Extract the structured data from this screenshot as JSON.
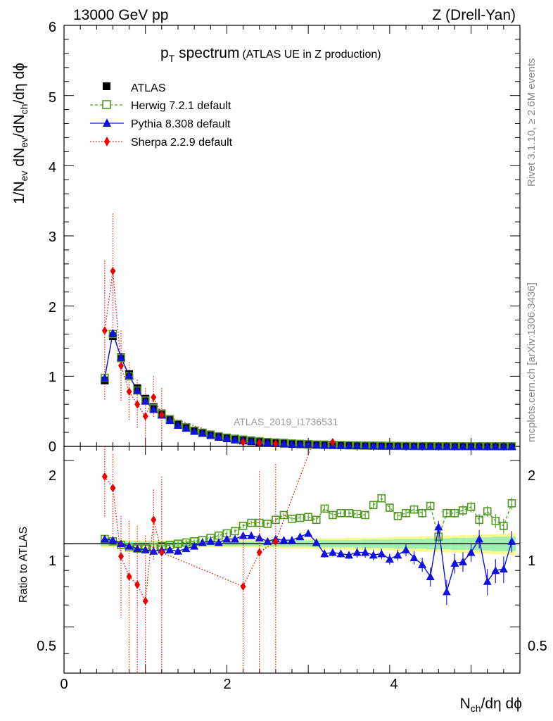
{
  "header": {
    "left": "13000 GeV pp",
    "right": "Z (Drell-Yan)"
  },
  "side_labels": {
    "rivet": "Rivet 3.1.10, ≥ 2.6M events",
    "mcplots": "mcplots.cern.ch [arXiv:1306.3436]"
  },
  "chart_data": {
    "type": "scatter",
    "title": "p",
    "title_sub": "T",
    "title_main": " spectrum",
    "title_note": "(ATLAS UE in Z production)",
    "analysis_label": "ATLAS_2019_I1736531",
    "xlabel": "N",
    "xlabel_sub": "ch",
    "xlabel_rest": "/dη dϕ",
    "ylabel": "1/N",
    "ylabel_sub1": "ev",
    "ylabel_mid": " dN",
    "ylabel_sub2": "ev",
    "ylabel_mid2": "/dN",
    "ylabel_sub3": "ch",
    "ylabel_rest": "/dη dϕ",
    "ratio_ylabel": "Ratio to ATLAS",
    "xlim": [
      0,
      5.6
    ],
    "ylim": [
      0,
      6
    ],
    "ratio_ylim": [
      0.34,
      2.25
    ],
    "xticks": [
      "0",
      "2",
      "4"
    ],
    "yticks": [
      "0",
      "1",
      "2",
      "3",
      "4",
      "5",
      "6"
    ],
    "ratio_yticks": [
      "0.5",
      "1",
      "2"
    ],
    "legend_position": "top-left",
    "x": [
      0.5,
      0.6,
      0.7,
      0.8,
      0.9,
      1.0,
      1.1,
      1.2,
      1.3,
      1.4,
      1.5,
      1.6,
      1.7,
      1.8,
      1.9,
      2.0,
      2.1,
      2.2,
      2.3,
      2.4,
      2.5,
      2.6,
      2.7,
      2.8,
      2.9,
      3.0,
      3.1,
      3.2,
      3.3,
      3.4,
      3.5,
      3.6,
      3.7,
      3.8,
      3.9,
      4.0,
      4.1,
      4.2,
      4.3,
      4.4,
      4.5,
      4.6,
      4.7,
      4.8,
      4.9,
      5.0,
      5.1,
      5.2,
      5.3,
      5.4,
      5.5
    ],
    "series": [
      {
        "name": "ATLAS",
        "color": "#000000",
        "values": [
          0.94,
          1.57,
          1.27,
          1.03,
          0.83,
          0.68,
          0.56,
          0.47,
          0.39,
          0.32,
          0.27,
          0.22,
          0.19,
          0.16,
          0.135,
          0.115,
          0.098,
          0.084,
          0.072,
          0.062,
          0.053,
          0.046,
          0.04,
          0.034,
          0.03,
          0.026,
          0.022,
          0.019,
          0.017,
          0.015,
          0.013,
          0.011,
          0.0095,
          0.0082,
          0.0071,
          0.0061,
          0.0053,
          0.0046,
          0.004,
          0.0035,
          0.003,
          0.0026,
          0.0022,
          0.0019,
          0.0017,
          0.0015,
          0.0013,
          0.0011,
          0.001,
          0.0009,
          0.0008
        ],
        "band_inner": [
          0.02,
          0.02,
          0.02,
          0.02,
          0.02,
          0.02,
          0.02,
          0.02,
          0.02,
          0.02,
          0.02,
          0.02,
          0.02,
          0.02,
          0.02,
          0.02,
          0.02,
          0.02,
          0.02,
          0.02,
          0.02,
          0.025,
          0.025,
          0.025,
          0.025,
          0.025,
          0.03,
          0.03,
          0.03,
          0.03,
          0.03,
          0.03,
          0.035,
          0.035,
          0.035,
          0.035,
          0.04,
          0.04,
          0.04,
          0.04,
          0.045,
          0.045,
          0.045,
          0.05,
          0.05,
          0.05,
          0.055,
          0.055,
          0.06,
          0.06,
          0.06
        ],
        "band_outer": [
          0.03,
          0.03,
          0.03,
          0.03,
          0.03,
          0.03,
          0.03,
          0.03,
          0.03,
          0.03,
          0.03,
          0.03,
          0.03,
          0.03,
          0.03,
          0.03,
          0.03,
          0.03,
          0.03,
          0.035,
          0.035,
          0.035,
          0.04,
          0.04,
          0.04,
          0.04,
          0.045,
          0.045,
          0.045,
          0.045,
          0.05,
          0.05,
          0.05,
          0.05,
          0.055,
          0.055,
          0.06,
          0.06,
          0.06,
          0.065,
          0.065,
          0.065,
          0.07,
          0.07,
          0.075,
          0.075,
          0.08,
          0.08,
          0.085,
          0.085,
          0.09
        ]
      },
      {
        "name": "Herwig 7.2.1 default",
        "color": "#4f9a1f",
        "ratio": [
          1.04,
          1.02,
          0.99,
          0.97,
          0.96,
          0.96,
          0.97,
          0.98,
          0.99,
          1.0,
          1.01,
          1.02,
          1.03,
          1.05,
          1.07,
          1.09,
          1.11,
          1.16,
          1.19,
          1.19,
          1.18,
          1.22,
          1.27,
          1.23,
          1.24,
          1.25,
          1.22,
          1.34,
          1.27,
          1.29,
          1.29,
          1.28,
          1.27,
          1.38,
          1.46,
          1.35,
          1.26,
          1.29,
          1.33,
          1.29,
          1.37,
          1.06,
          1.29,
          1.29,
          1.32,
          1.36,
          1.22,
          1.31,
          1.21,
          1.16,
          1.4
        ],
        "ratio_err": [
          0.02,
          0.02,
          0.02,
          0.02,
          0.02,
          0.02,
          0.02,
          0.02,
          0.02,
          0.02,
          0.02,
          0.02,
          0.02,
          0.02,
          0.02,
          0.02,
          0.02,
          0.02,
          0.02,
          0.02,
          0.02,
          0.02,
          0.02,
          0.02,
          0.03,
          0.03,
          0.03,
          0.03,
          0.03,
          0.03,
          0.03,
          0.03,
          0.03,
          0.04,
          0.04,
          0.04,
          0.04,
          0.04,
          0.05,
          0.05,
          0.05,
          0.05,
          0.05,
          0.05,
          0.06,
          0.06,
          0.06,
          0.06,
          0.07,
          0.07,
          0.07
        ]
      },
      {
        "name": "Pythia 8.308 default",
        "color": "#1010e0",
        "ratio": [
          1.04,
          1.03,
          1.0,
          0.98,
          0.96,
          0.95,
          0.94,
          0.95,
          0.95,
          0.94,
          0.96,
          0.98,
          1.01,
          1.02,
          1.01,
          1.04,
          1.04,
          1.07,
          1.07,
          1.05,
          1.02,
          1.04,
          1.03,
          1.03,
          1.06,
          1.09,
          1.01,
          0.92,
          0.93,
          0.92,
          0.91,
          0.93,
          0.93,
          0.91,
          0.92,
          0.88,
          0.91,
          0.95,
          0.89,
          0.84,
          0.76,
          1.15,
          0.67,
          0.85,
          0.86,
          0.93,
          1.04,
          0.73,
          0.8,
          0.81,
          1.02
        ],
        "ratio_err": [
          0.02,
          0.02,
          0.02,
          0.02,
          0.02,
          0.02,
          0.02,
          0.02,
          0.02,
          0.02,
          0.02,
          0.02,
          0.02,
          0.02,
          0.02,
          0.02,
          0.02,
          0.02,
          0.02,
          0.02,
          0.02,
          0.02,
          0.02,
          0.03,
          0.03,
          0.03,
          0.03,
          0.03,
          0.03,
          0.03,
          0.03,
          0.04,
          0.04,
          0.04,
          0.04,
          0.04,
          0.04,
          0.05,
          0.05,
          0.05,
          0.06,
          0.06,
          0.07,
          0.07,
          0.07,
          0.07,
          0.08,
          0.08,
          0.08,
          0.09,
          0.09
        ]
      },
      {
        "name": "Sherpa 2.2.9 default",
        "color": "#ee0000",
        "points": [
          {
            "x": 0.5,
            "y": 1.65,
            "ratio": 1.75,
            "ratio_err": 0.5
          },
          {
            "x": 0.6,
            "y": 2.5,
            "ratio": 1.59,
            "ratio_err": 0.52
          },
          {
            "x": 0.7,
            "y": 1.15,
            "ratio": 0.9,
            "ratio_err": 0.36
          },
          {
            "x": 0.8,
            "y": 0.78,
            "ratio": 0.76,
            "ratio_err": 0.45
          },
          {
            "x": 0.9,
            "y": 0.6,
            "ratio": 0.71,
            "ratio_err": 0.45
          },
          {
            "x": 1.0,
            "y": 0.43,
            "ratio": 0.62,
            "ratio_err": 0.45
          },
          {
            "x": 1.1,
            "y": 0.7,
            "ratio": 1.22,
            "ratio_err": 0.35
          },
          {
            "x": 1.2,
            "y": 0.45,
            "ratio": 0.93,
            "ratio_err": 0.82
          },
          {
            "x": 2.2,
            "y": 0.06,
            "ratio": 0.7,
            "ratio_err": 0.38
          },
          {
            "x": 2.4,
            "y": 0.05,
            "ratio": 0.93,
            "ratio_err": 0.9
          },
          {
            "x": 2.6,
            "y": 0.04,
            "ratio": 1.02,
            "ratio_err": 0.92
          },
          {
            "x": 3.3,
            "y": 0.06,
            "ratio": 3.6,
            "ratio_err": 0.5
          }
        ],
        "y_err": [
          1.0,
          0.82,
          0.5,
          0.42,
          0.35,
          0.4,
          0.3,
          0.38,
          0.02,
          0.02,
          0.02,
          0.02
        ]
      }
    ],
    "herwig_y_err": 0.02,
    "pythia_y_err": 0.02
  }
}
